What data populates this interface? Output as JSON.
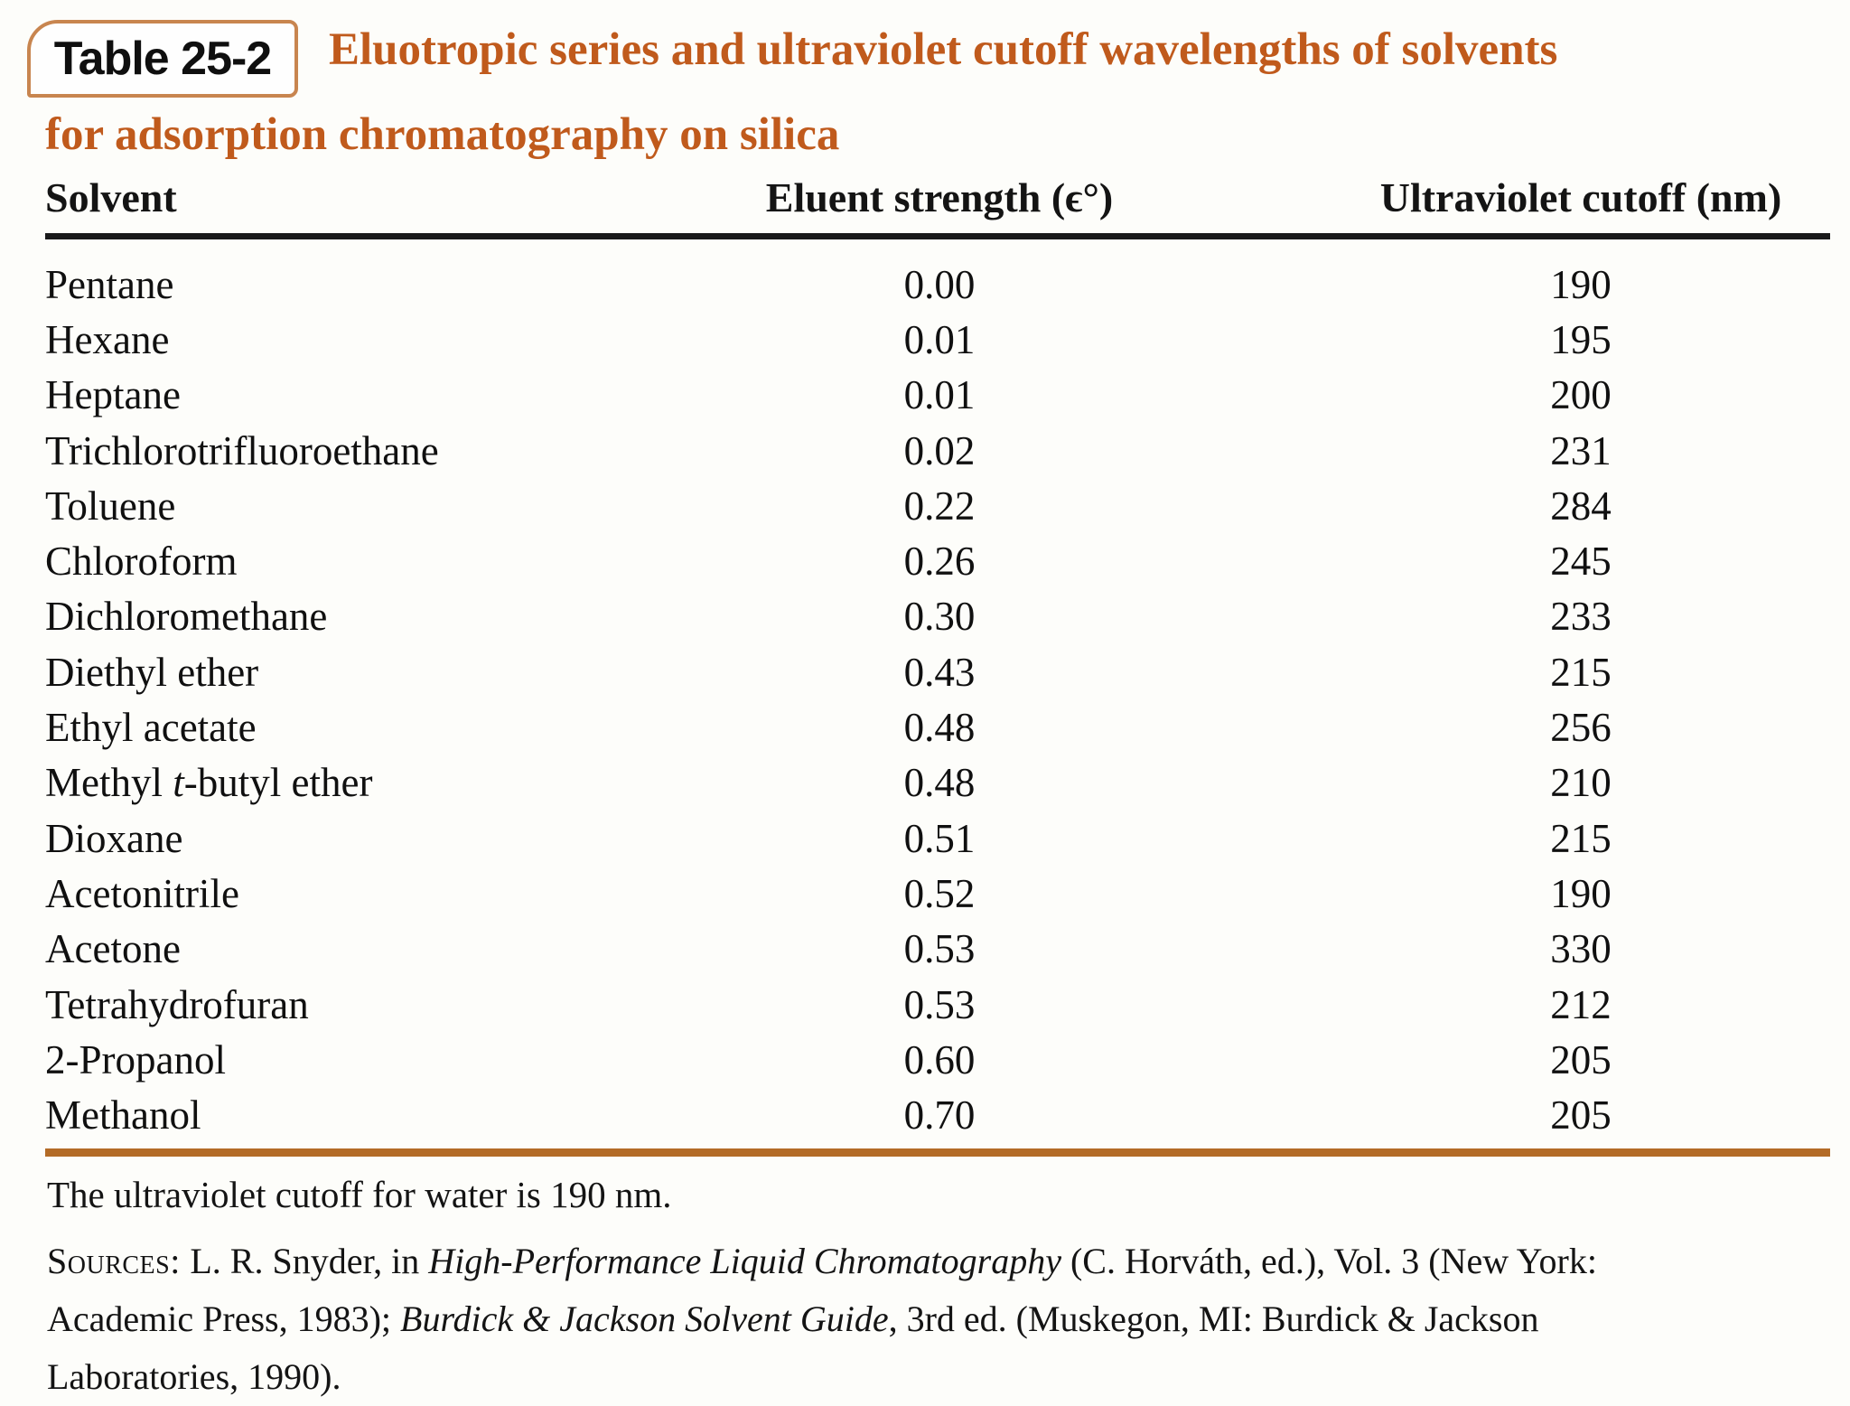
{
  "page": {
    "background": "#fdfdfa"
  },
  "header": {
    "tag_label": "Table 25-2",
    "title_line1": "Eluotropic series and ultraviolet cutoff wavelengths of solvents",
    "title_line2": "for adsorption chromatography on silica",
    "accent_color": "#c05a1c",
    "tag_border_color": "#c8854f"
  },
  "table": {
    "columns": [
      "Solvent",
      "Eluent strength (ϵ°)",
      "Ultraviolet cutoff (nm)"
    ],
    "header_rule_color": "#1a1a1a",
    "bottom_rule_color": "#b36b26",
    "rows": [
      {
        "solvent_parts": [
          {
            "text": "Pentane"
          }
        ],
        "strength": "0.00",
        "cutoff": "190"
      },
      {
        "solvent_parts": [
          {
            "text": "Hexane"
          }
        ],
        "strength": "0.01",
        "cutoff": "195"
      },
      {
        "solvent_parts": [
          {
            "text": "Heptane"
          }
        ],
        "strength": "0.01",
        "cutoff": "200"
      },
      {
        "solvent_parts": [
          {
            "text": "Trichlorotrifluoroethane"
          }
        ],
        "strength": "0.02",
        "cutoff": "231"
      },
      {
        "solvent_parts": [
          {
            "text": "Toluene"
          }
        ],
        "strength": "0.22",
        "cutoff": "284"
      },
      {
        "solvent_parts": [
          {
            "text": "Chloroform"
          }
        ],
        "strength": "0.26",
        "cutoff": "245"
      },
      {
        "solvent_parts": [
          {
            "text": "Dichloromethane"
          }
        ],
        "strength": "0.30",
        "cutoff": "233"
      },
      {
        "solvent_parts": [
          {
            "text": "Diethyl ether"
          }
        ],
        "strength": "0.43",
        "cutoff": "215"
      },
      {
        "solvent_parts": [
          {
            "text": "Ethyl acetate"
          }
        ],
        "strength": "0.48",
        "cutoff": "256"
      },
      {
        "solvent_parts": [
          {
            "text": "Methyl "
          },
          {
            "text": "t",
            "italic": true
          },
          {
            "text": "-butyl ether"
          }
        ],
        "strength": "0.48",
        "cutoff": "210"
      },
      {
        "solvent_parts": [
          {
            "text": "Dioxane"
          }
        ],
        "strength": "0.51",
        "cutoff": "215"
      },
      {
        "solvent_parts": [
          {
            "text": "Acetonitrile"
          }
        ],
        "strength": "0.52",
        "cutoff": "190"
      },
      {
        "solvent_parts": [
          {
            "text": "Acetone"
          }
        ],
        "strength": "0.53",
        "cutoff": "330"
      },
      {
        "solvent_parts": [
          {
            "text": "Tetrahydrofuran"
          }
        ],
        "strength": "0.53",
        "cutoff": "212"
      },
      {
        "solvent_parts": [
          {
            "text": "2-Propanol"
          }
        ],
        "strength": "0.60",
        "cutoff": "205"
      },
      {
        "solvent_parts": [
          {
            "text": "Methanol"
          }
        ],
        "strength": "0.70",
        "cutoff": "205"
      }
    ]
  },
  "footnote": "The ultraviolet cutoff for water is 190 nm.",
  "sources": {
    "lines": [
      {
        "parts": [
          {
            "text": "Sources: ",
            "smallcaps": true
          },
          {
            "text": "L. R. Snyder, in "
          },
          {
            "text": "High-Performance Liquid Chromatography",
            "italic": true
          },
          {
            "text": " (C. Horváth, ed.), Vol. 3 (New York:"
          }
        ]
      },
      {
        "parts": [
          {
            "text": "Academic Press, 1983); "
          },
          {
            "text": "Burdick & Jackson Solvent Guide",
            "italic": true
          },
          {
            "text": ", 3rd ed. (Muskegon, MI: Burdick & Jackson"
          }
        ]
      },
      {
        "parts": [
          {
            "text": "Laboratories, 1990)."
          }
        ]
      }
    ]
  }
}
